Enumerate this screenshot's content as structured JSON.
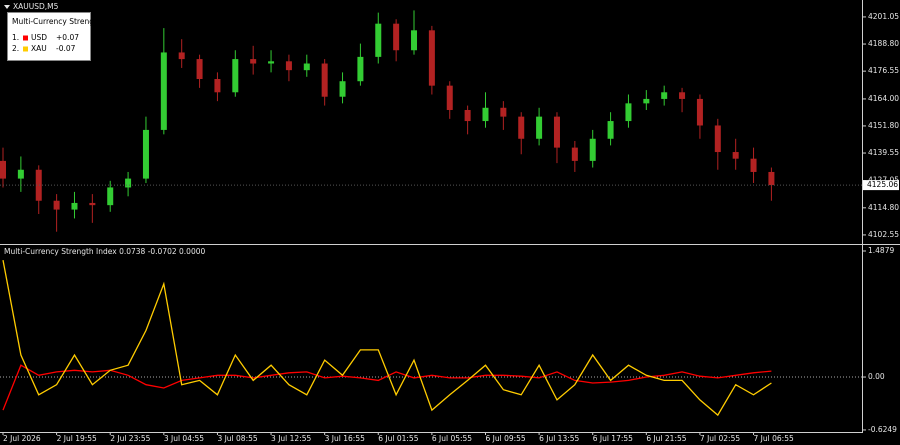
{
  "chart_data": [
    {
      "type": "candlestick",
      "title": "XAUUSD,M5",
      "categories": [
        "2 Jul 2026",
        null,
        null,
        "2 Jul 19:55",
        null,
        null,
        "2 Jul 23:55",
        null,
        null,
        "3 Jul 04:55",
        null,
        null,
        "3 Jul 08:55",
        null,
        null,
        "3 Jul 12:55",
        null,
        null,
        "3 Jul 16:55",
        null,
        null,
        "6 Jul 01:55",
        null,
        null,
        "6 Jul 05:55",
        null,
        null,
        "6 Jul 09:55",
        null,
        null,
        "6 Jul 13:55",
        null,
        null,
        "6 Jul 17:55",
        null,
        null,
        "6 Jul 21:55",
        null,
        null,
        "7 Jul 02:55",
        null,
        null,
        "7 Jul 06:55",
        null
      ],
      "open": [
        4136,
        4128,
        4132,
        4118,
        4114,
        4117,
        4116,
        4124,
        4128,
        4150,
        4185,
        4182,
        4173,
        4167,
        4182,
        4180,
        4181,
        4177,
        4180,
        4165,
        4172,
        4183,
        4198,
        4186,
        4195,
        4170,
        4159,
        4154,
        4160,
        4156,
        4146,
        4156,
        4142,
        4136,
        4146,
        4154,
        4162,
        4164,
        4167,
        4164,
        4152,
        4140,
        4137,
        4131
      ],
      "high": [
        4142,
        4138,
        4134,
        4121,
        4122,
        4121,
        4127,
        4131,
        4156,
        4196,
        4191,
        4184,
        4176,
        4186,
        4188,
        4186,
        4184,
        4184,
        4182,
        4176,
        4189,
        4203,
        4200,
        4204,
        4197,
        4172,
        4161,
        4167,
        4163,
        4158,
        4160,
        4158,
        4145,
        4150,
        4158,
        4166,
        4168,
        4170,
        4169,
        4166,
        4155,
        4146,
        4142,
        4133
      ],
      "low": [
        4124,
        4122,
        4112,
        4104,
        4110,
        4108,
        4113,
        4120,
        4126,
        4148,
        4178,
        4169,
        4163,
        4165,
        4175,
        4176,
        4172,
        4174,
        4161,
        4162,
        4170,
        4180,
        4181,
        4184,
        4166,
        4155,
        4148,
        4151,
        4150,
        4139,
        4143,
        4135,
        4131,
        4133,
        4143,
        4151,
        4159,
        4161,
        4158,
        4146,
        4132,
        4132,
        4126,
        4118
      ],
      "close": [
        4128,
        4132,
        4118,
        4114,
        4117,
        4116,
        4124,
        4128,
        4150,
        4185,
        4182,
        4173,
        4167,
        4182,
        4180,
        4181,
        4177,
        4180,
        4165,
        4172,
        4183,
        4198,
        4186,
        4195,
        4170,
        4159,
        4154,
        4160,
        4156,
        4146,
        4156,
        4142,
        4136,
        4146,
        4154,
        4162,
        4164,
        4167,
        4164,
        4152,
        4140,
        4137,
        4131,
        4125.06
      ],
      "up_color": "#33cc33",
      "down_color": "#b22222",
      "ylim": [
        4098.9,
        4208.7
      ],
      "yticks": [
        4201.05,
        {
          "value": 4188.8,
          "label": "4188.80"
        },
        4176.55,
        {
          "value": 4164,
          "label": "4164.00"
        },
        {
          "value": 4151.8,
          "label": "4151.80"
        },
        4139.55,
        4127.05,
        {
          "value": 4114.8,
          "label": "4114.80"
        },
        4102.55
      ]
    },
    {
      "type": "line",
      "title": "Multi-Currency Strength Index 0.0738 -0.0702 0.0000",
      "legend_title": "Multi-Currency Strength",
      "legend_ranks": [
        "1.",
        "2."
      ],
      "legend_values": [
        0.07,
        -0.07
      ],
      "legend_value_labels": [
        "+0.07",
        "-0.07"
      ],
      "series": [
        {
          "name": "USD",
          "color": "#ff0000",
          "values": [
            -0.39,
            0.14,
            0.02,
            0.06,
            0.08,
            0.06,
            0.08,
            0.02,
            -0.09,
            -0.13,
            -0.04,
            -0.01,
            0.02,
            0.02,
            -0.01,
            0.02,
            0.05,
            0.06,
            -0.01,
            0.01,
            -0.01,
            -0.04,
            0.06,
            -0.01,
            0.02,
            -0.01,
            -0.01,
            0.02,
            0.02,
            0.01,
            -0.01,
            0.06,
            -0.04,
            -0.07,
            -0.06,
            -0.04,
            0,
            0.02,
            0.06,
            0.01,
            -0.01,
            0.02,
            0.05,
            0.07
          ]
        },
        {
          "name": "XAU",
          "color": "#ffcc00",
          "values": [
            1.38,
            0.26,
            -0.21,
            -0.09,
            0.26,
            -0.09,
            0.08,
            0.14,
            0.55,
            1.1,
            -0.09,
            -0.04,
            -0.21,
            0.26,
            -0.04,
            0.14,
            -0.09,
            -0.21,
            0.2,
            0.02,
            0.32,
            0.32,
            -0.21,
            0.2,
            -0.39,
            -0.21,
            -0.04,
            0.14,
            -0.15,
            -0.21,
            0.14,
            -0.27,
            -0.09,
            0.26,
            -0.04,
            0.14,
            0.02,
            -0.04,
            -0.04,
            -0.27,
            -0.45,
            -0.09,
            -0.21,
            -0.07
          ]
        }
      ],
      "levels": [
        0
      ],
      "ylim": [
        -0.649,
        1.547
      ],
      "yticks": [
        1.4879,
        {
          "value": 0,
          "label": "0.00"
        },
        -0.6249
      ]
    }
  ]
}
